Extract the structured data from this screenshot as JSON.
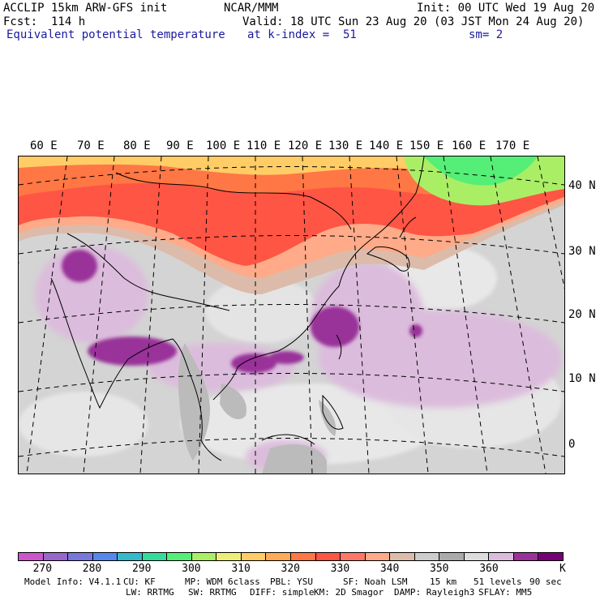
{
  "header": {
    "line1_left": "ACCLIP 15km ARW-GFS init",
    "line1_center": "NCAR/MMM",
    "line1_right": "Init: 00 UTC Wed 19 Aug 20",
    "line2_left": "Fcst:  114 h",
    "line2_right": "Valid: 18 UTC Sun 23 Aug 20 (03 JST Mon 24 Aug 20)",
    "line3_field": "Equivalent potential temperature",
    "line3_level": "at k-index =  51",
    "line3_smooth": "sm= 2"
  },
  "map": {
    "lon_labels": [
      "60 E",
      "70 E",
      "80 E",
      "90 E",
      "100 E",
      "110 E",
      "120 E",
      "130 E",
      "140 E",
      "150 E",
      "160 E",
      "170 E"
    ],
    "lat_labels": [
      "40 N",
      "30 N",
      "20 N",
      "10 N",
      "0"
    ]
  },
  "colorbar": {
    "colors": [
      "#cc55cc",
      "#9966cc",
      "#7777dd",
      "#5588ee",
      "#33bbcc",
      "#33dd99",
      "#55ee77",
      "#aaee66",
      "#eeee77",
      "#ffcc66",
      "#ffaa55",
      "#ff7744",
      "#ff5544",
      "#ff7766",
      "#ffaa88",
      "#ddbbaa",
      "#cccccc",
      "#aaaaaa",
      "#dddddd",
      "#dcbcdc",
      "#993399",
      "#770077"
    ],
    "labels": [
      "270",
      "280",
      "290",
      "300",
      "310",
      "320",
      "330",
      "340",
      "350",
      "360"
    ],
    "unit": "K"
  },
  "footer": {
    "line1": [
      "Model Info: V4.1.1",
      "CU: KF",
      "MP: WDM 6class",
      "PBL: YSU",
      "SF: Noah LSM",
      "15 km",
      "51 levels",
      "90 sec"
    ],
    "line2": [
      "LW: RRTMG",
      "SW: RRTMG",
      "DIFF: simple",
      "KM: 2D Smagor",
      "DAMP: Rayleigh3",
      "SFLAY: MM5"
    ]
  }
}
